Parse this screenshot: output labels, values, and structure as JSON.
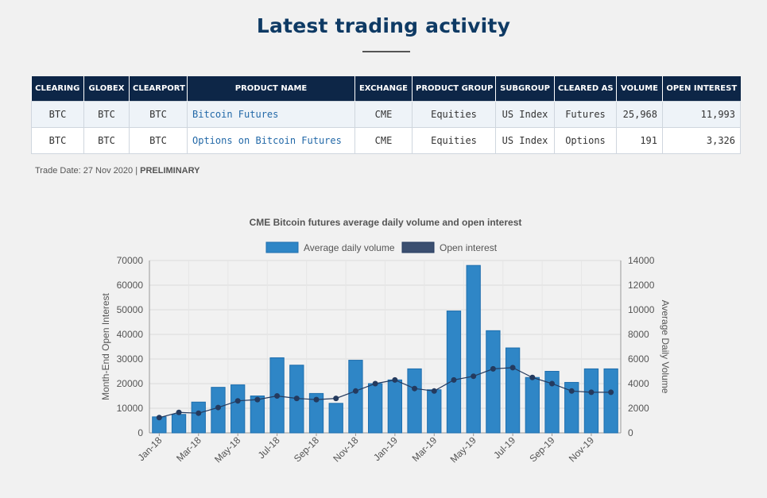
{
  "page": {
    "title": "Latest trading activity"
  },
  "table": {
    "headers": [
      "CLEARING",
      "GLOBEX",
      "CLEARPORT",
      "PRODUCT NAME",
      "EXCHANGE",
      "PRODUCT GROUP",
      "SUBGROUP",
      "CLEARED AS",
      "VOLUME",
      "OPEN INTEREST"
    ],
    "rows": [
      [
        "BTC",
        "BTC",
        "BTC",
        "Bitcoin Futures",
        "CME",
        "Equities",
        "US Index",
        "Futures",
        "25,968",
        "11,993"
      ],
      [
        "BTC",
        "BTC",
        "BTC",
        "Options on Bitcoin Futures",
        "CME",
        "Equities",
        "US Index",
        "Options",
        "191",
        "3,326"
      ]
    ]
  },
  "trade_date": {
    "label": "Trade Date: 27 Nov 2020",
    "separator": "|",
    "status": "PRELIMINARY"
  },
  "chart_data": {
    "type": "bar",
    "title": "CME Bitcoin futures average daily volume and open interest",
    "legend_position": "top-center",
    "categories": [
      "Jan-18",
      "Feb-18",
      "Mar-18",
      "Apr-18",
      "May-18",
      "Jun-18",
      "Jul-18",
      "Aug-18",
      "Sep-18",
      "Oct-18",
      "Nov-18",
      "Dec-18",
      "Jan-19",
      "Feb-19",
      "Mar-19",
      "Apr-19",
      "May-19",
      "Jun-19",
      "Jul-19",
      "Aug-19",
      "Sep-19",
      "Oct-19",
      "Nov-19",
      "Dec-19"
    ],
    "tick_labels": [
      "Jan-18",
      "Mar-18",
      "May-18",
      "Jul-18",
      "Sep-18",
      "Nov-18",
      "Jan-19",
      "Mar-19",
      "May-19",
      "Jul-19",
      "Sep-19",
      "Nov-19"
    ],
    "series": [
      {
        "name": "Average daily volume",
        "kind": "bar",
        "axis": "right",
        "color": "#2f86c6",
        "values": [
          1300,
          1500,
          2500,
          3700,
          3900,
          3000,
          6100,
          5500,
          3200,
          2400,
          5900,
          4000,
          4300,
          5200,
          3500,
          9900,
          13600,
          8300,
          6900,
          4500,
          5000,
          4100,
          5200,
          5200
        ]
      },
      {
        "name": "Open interest",
        "kind": "line",
        "axis": "left",
        "color": "#243a5e",
        "values": [
          6200,
          8300,
          8000,
          10300,
          13000,
          13500,
          15000,
          14000,
          13500,
          14000,
          17000,
          20000,
          21500,
          18000,
          17000,
          21500,
          23000,
          26000,
          26500,
          22500,
          20000,
          17000,
          16500,
          16500
        ]
      }
    ],
    "left_axis": {
      "label": "Month-End Open Interest",
      "min": 0,
      "max": 70000,
      "step": 10000
    },
    "right_axis": {
      "label": "Average Daily Volume",
      "min": 0,
      "max": 14000,
      "step": 2000
    },
    "grid": true
  }
}
